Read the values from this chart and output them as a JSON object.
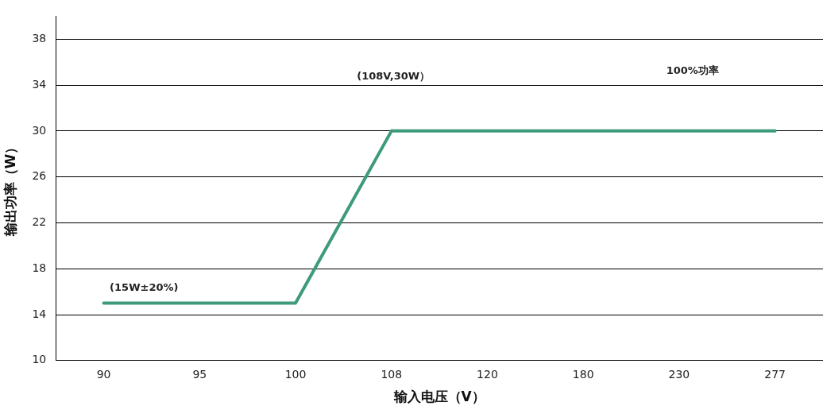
{
  "chart_data": {
    "type": "line",
    "xlabel": "输入电压（V）",
    "ylabel": "输出功率（W）",
    "categories": [
      "90",
      "95",
      "100",
      "108",
      "120",
      "180",
      "230",
      "277"
    ],
    "series": [
      {
        "color": "#3d9a7c",
        "values": [
          15,
          15,
          15,
          30,
          30,
          30,
          30,
          30
        ]
      }
    ],
    "ylim": [
      10,
      40
    ],
    "yticks": [
      10,
      14,
      18,
      22,
      26,
      30,
      34,
      38
    ],
    "grid": "y",
    "legend": false,
    "marker": "none",
    "line_style": "solid",
    "annotations": [
      "(15W±20%)",
      "(108V,30W）",
      "100%功率"
    ]
  }
}
